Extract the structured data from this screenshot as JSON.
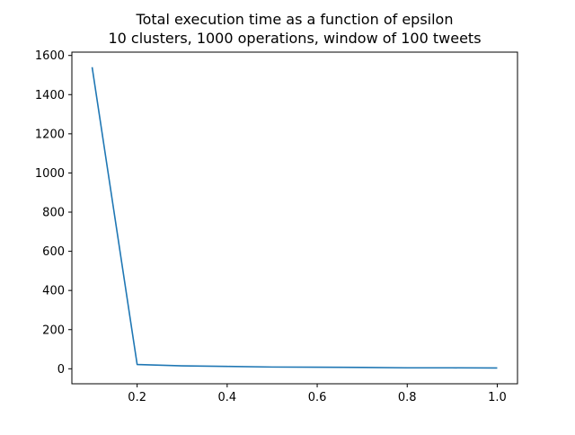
{
  "chart_data": {
    "type": "line",
    "title_lines": [
      "Total execution time as a function of epsilon",
      "10 clusters, 1000 operations, window of 100 tweets"
    ],
    "xlabel": "",
    "ylabel": "",
    "xlim": [
      0.055,
      1.045
    ],
    "ylim": [
      -76.5,
      1617
    ],
    "x_ticks": [
      0.2,
      0.4,
      0.6,
      0.8,
      1.0
    ],
    "x_tick_labels": [
      "0.2",
      "0.4",
      "0.6",
      "0.8",
      "1.0"
    ],
    "y_ticks": [
      0,
      200,
      400,
      600,
      800,
      1000,
      1200,
      1400,
      1600
    ],
    "y_tick_labels": [
      "0",
      "200",
      "400",
      "600",
      "800",
      "1000",
      "1200",
      "1400",
      "1600"
    ],
    "grid": false,
    "series": [
      {
        "color": "#1f77b4",
        "x": [
          0.1,
          0.2,
          0.3,
          0.4,
          0.5,
          0.6,
          0.7,
          0.8,
          0.9,
          1.0
        ],
        "y": [
          1540,
          22,
          15,
          12,
          9,
          8,
          7,
          5,
          5,
          4
        ]
      }
    ]
  }
}
